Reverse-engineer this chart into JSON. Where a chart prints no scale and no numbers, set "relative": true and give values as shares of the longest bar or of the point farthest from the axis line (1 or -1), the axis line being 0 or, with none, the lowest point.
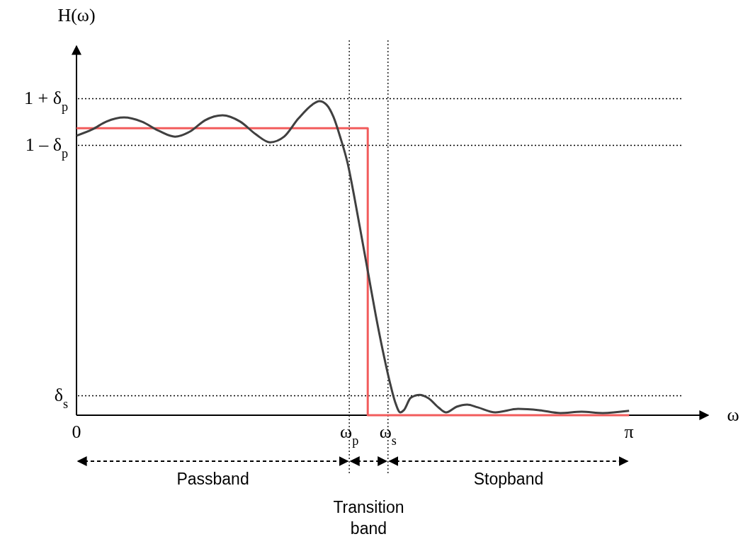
{
  "chart_data": {
    "type": "line",
    "relative": true,
    "xlabel": "ω",
    "ylabel": "H(ω)",
    "xlim": [
      0,
      3.59
    ],
    "xticks": [
      {
        "value": 0,
        "label": "0"
      },
      {
        "value": 1.55,
        "label": "ω$_{p}$"
      },
      {
        "value": 1.77,
        "label": "ω$_{s}$"
      },
      {
        "value": 3.14,
        "label": "π"
      }
    ],
    "series": [
      {
        "color": "#f25c5c",
        "x": [
          0,
          1.655,
          1.655,
          3.14
        ],
        "values": [
          0.914,
          0.914,
          0,
          0
        ]
      },
      {
        "color": "#404040",
        "x": [
          0,
          0.09,
          0.17,
          0.27,
          0.37,
          0.47,
          0.56,
          0.65,
          0.73,
          0.83,
          0.93,
          1.02,
          1.1,
          1.18,
          1.26,
          1.34,
          1.38,
          1.42,
          1.46,
          1.5,
          1.54,
          1.58,
          1.62,
          1.66,
          1.7,
          1.74,
          1.78,
          1.81,
          1.84,
          1.86,
          1.9,
          1.95,
          2.0,
          2.06,
          2.1,
          2.16,
          2.22,
          2.28,
          2.38,
          2.51,
          2.63,
          2.75,
          2.87,
          2.99,
          3.14
        ],
        "values": [
          0.89,
          0.91,
          0.935,
          0.948,
          0.935,
          0.905,
          0.887,
          0.905,
          0.939,
          0.955,
          0.935,
          0.894,
          0.869,
          0.887,
          0.944,
          0.989,
          1.0,
          0.989,
          0.95,
          0.883,
          0.804,
          0.691,
          0.568,
          0.444,
          0.32,
          0.207,
          0.106,
          0.043,
          0.009,
          0.016,
          0.056,
          0.065,
          0.054,
          0.023,
          0.009,
          0.027,
          0.034,
          0.025,
          0.009,
          0.02,
          0.016,
          0.007,
          0.011,
          0.007,
          0.014
        ]
      }
    ],
    "ref_lines": [
      {
        "axis": "y",
        "value": 1.01,
        "label": "1 + δ$_{p}$",
        "line_style": "dotted"
      },
      {
        "axis": "y",
        "value": 0.86,
        "label": "1 – δ$_{p}$",
        "line_style": "dotted"
      },
      {
        "axis": "y",
        "value": 0.063,
        "label": "δ$_{s}$",
        "line_style": "dotted"
      },
      {
        "axis": "x",
        "value": 1.55,
        "line_style": "dotted"
      },
      {
        "axis": "x",
        "value": 1.77,
        "line_style": "dotted"
      }
    ],
    "annotations": [
      "Passband",
      "Transition band",
      "Stopband"
    ],
    "grid": false,
    "line_style": "solid",
    "marker": "none"
  }
}
